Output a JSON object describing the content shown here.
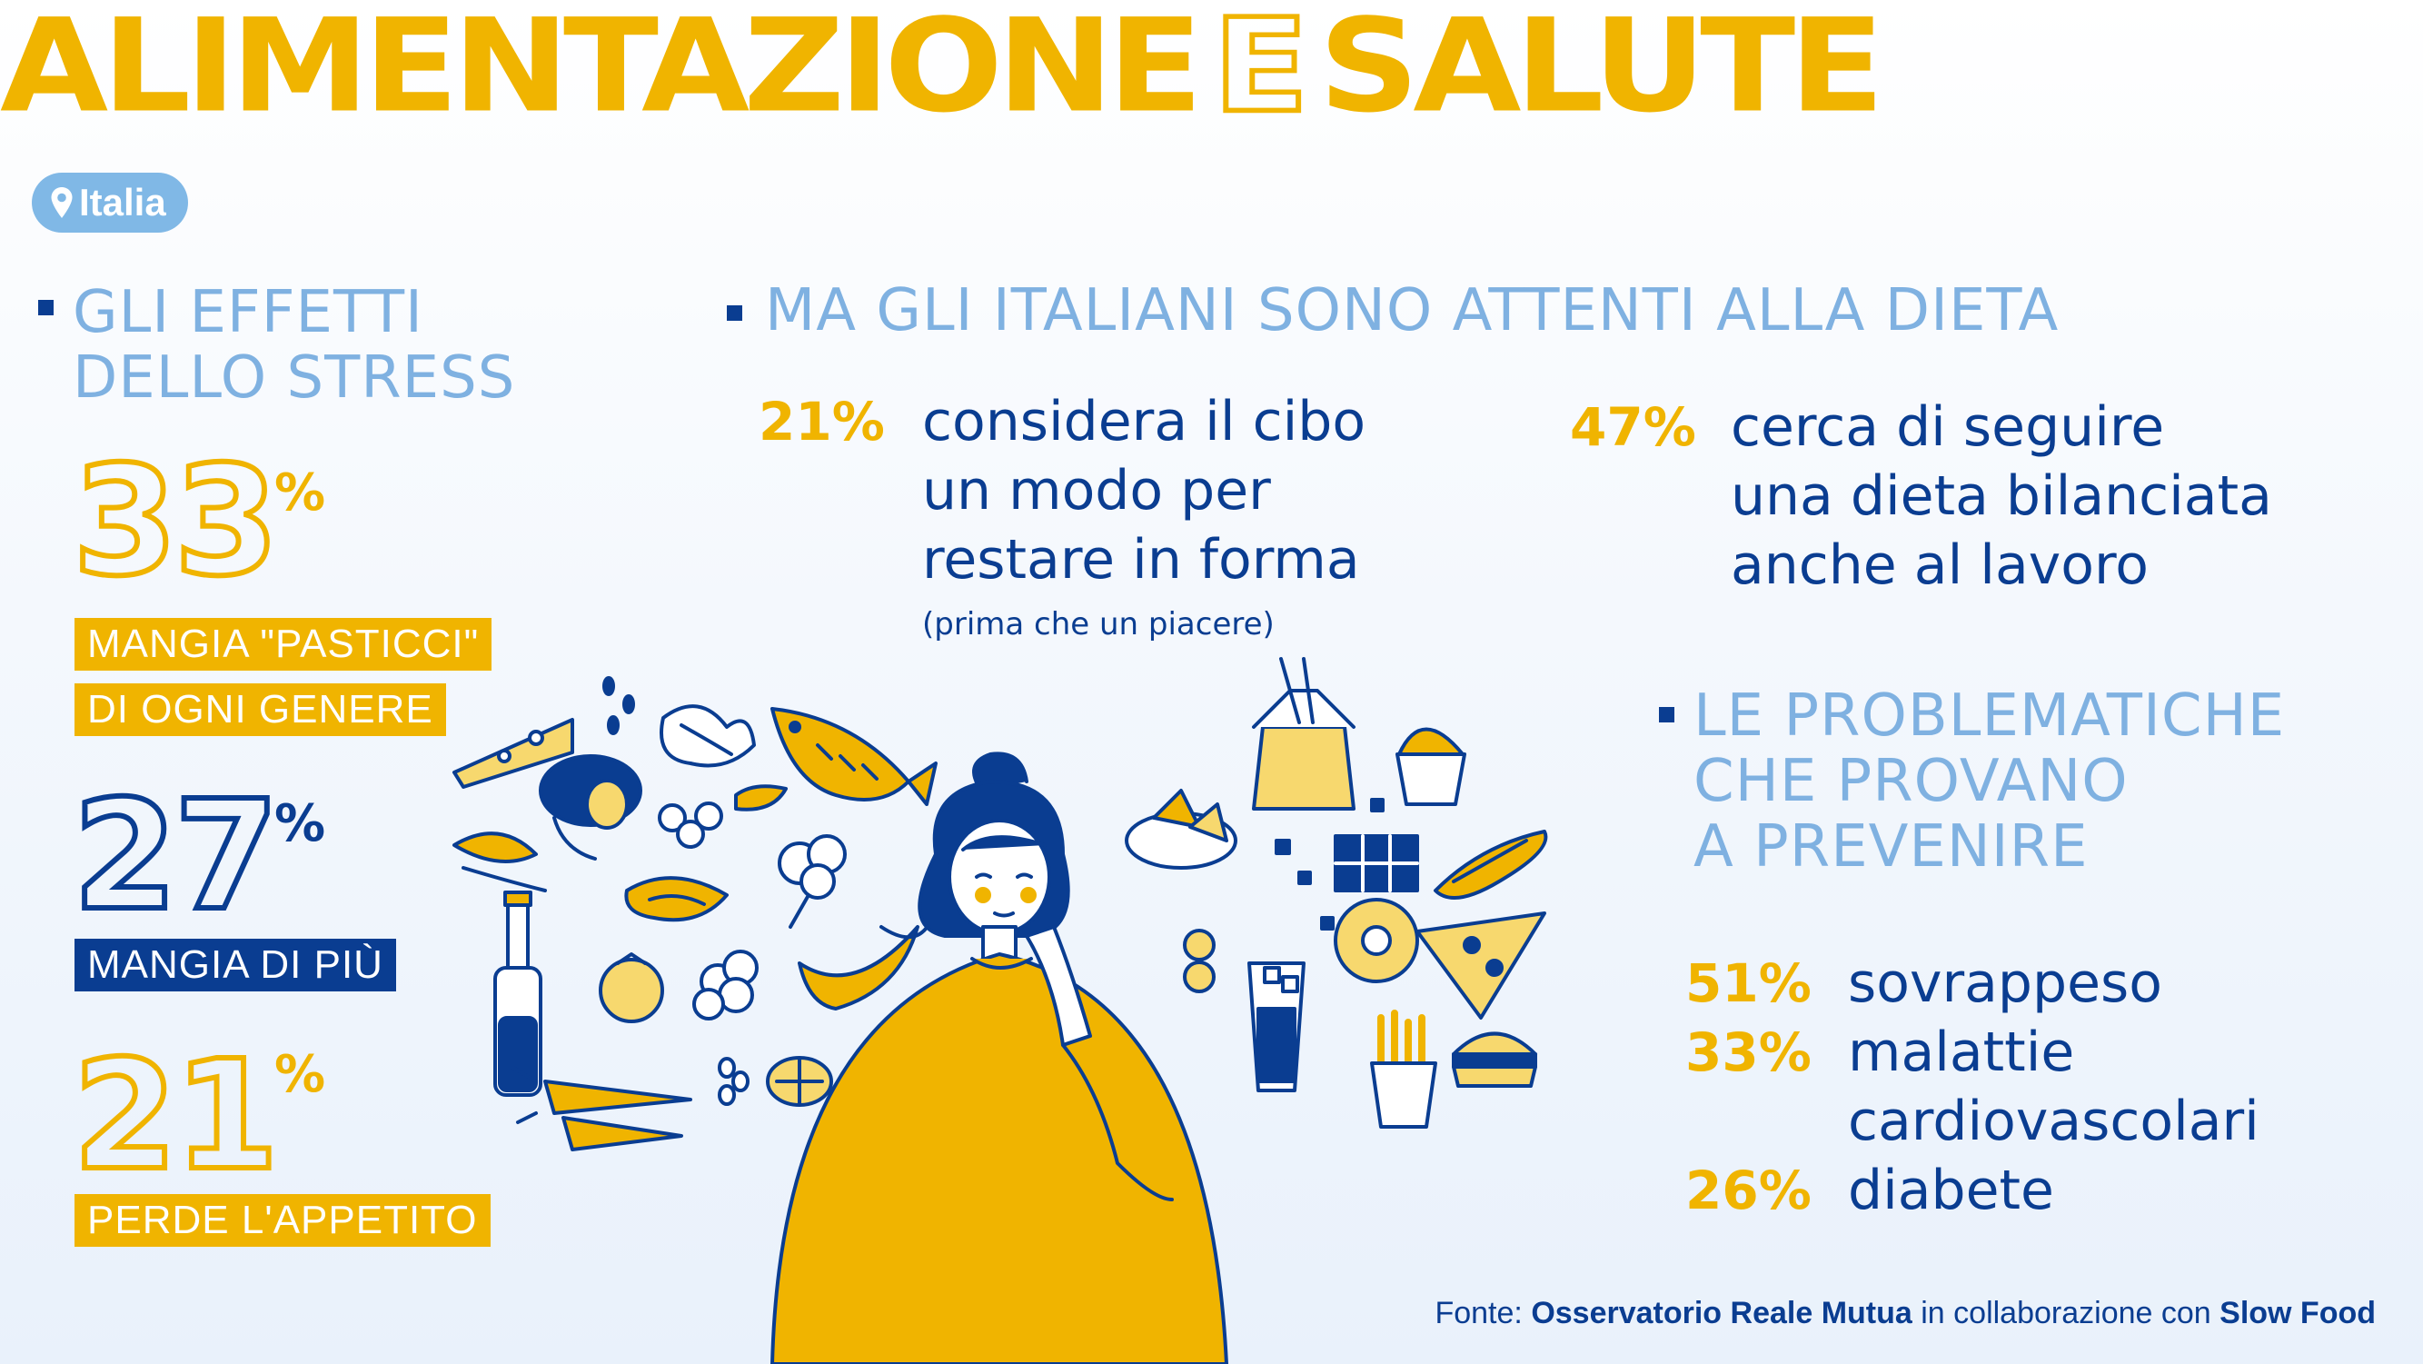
{
  "header": {
    "title_part1": "ALIMENTAZIONE",
    "title_part2": "E",
    "title_part3": "SALUTE",
    "location": "Italia"
  },
  "stress": {
    "heading_line1": "GLI EFFETTI",
    "heading_line2": "DELLO STRESS",
    "items": [
      {
        "value": "33",
        "unit": "%",
        "label_line1": "MANGIA \"PASTICCI\"",
        "label_line2": "DI OGNI GENERE"
      },
      {
        "value": "27",
        "unit": "%",
        "label_line1": "MANGIA DI PIÙ"
      },
      {
        "value": "21",
        "unit": "%",
        "label_line1": "PERDE L'APPETITO"
      }
    ]
  },
  "diet": {
    "heading": "MA GLI ITALIANI SONO ATTENTI ALLA DIETA",
    "items": [
      {
        "value": "21%",
        "line1": "considera il cibo",
        "line2": "un modo per",
        "line3": "restare in forma",
        "note": "(prima che un piacere)"
      },
      {
        "value": "47%",
        "line1": "cerca di seguire",
        "line2": "una dieta bilanciata",
        "line3": "anche al lavoro"
      }
    ]
  },
  "problems": {
    "heading_line1": "LE PROBLEMATICHE",
    "heading_line2": "CHE PROVANO",
    "heading_line3": "A PREVENIRE",
    "items": [
      {
        "value": "51%",
        "label": "sovrappeso"
      },
      {
        "value": "33%",
        "label": "malattie",
        "label2": "cardiovascolari"
      },
      {
        "value": "26%",
        "label": "diabete"
      }
    ]
  },
  "source": {
    "prefix": "Fonte:",
    "org1": "Osservatorio Reale Mutua",
    "middle": "in collaborazione con",
    "org2": "Slow Food"
  },
  "colors": {
    "yellow": "#f0b400",
    "navy": "#0a3d91",
    "light_blue": "#7fb1e1"
  },
  "illustration": {
    "icons": [
      "cheese-icon",
      "mushroom-icon",
      "kale-icon",
      "fish-icon",
      "salmon-steak-icon",
      "broccoli-icon",
      "banana-icon",
      "oil-bottle-icon",
      "tomato-icon",
      "cauliflower-icon",
      "carrots-icon",
      "lemon-icon",
      "noodle-box-icon",
      "muffin-icon",
      "chocolate-icon",
      "hotdog-icon",
      "donut-icon",
      "pizza-slice-icon",
      "soda-cup-icon",
      "fries-icon",
      "burger-icon",
      "nachos-icon",
      "woman-thinking-icon"
    ]
  }
}
